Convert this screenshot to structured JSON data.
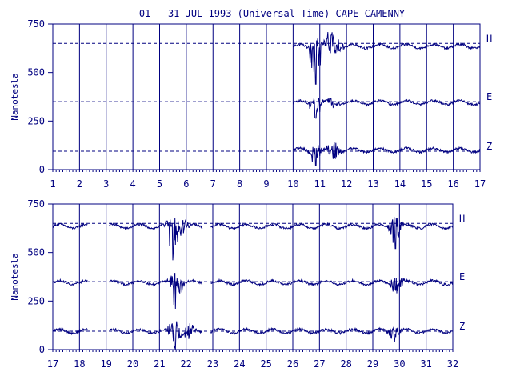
{
  "title": "01 - 31 JUL 1993 (Universal Time) CAPE CAMENNY",
  "colors": {
    "ink": "#000080",
    "background": "#ffffff"
  },
  "chart_data": [
    {
      "type": "line",
      "panel": "top",
      "ylabel": "Nanotesla",
      "xlabel": "",
      "xlim": [
        1,
        17
      ],
      "ylim": [
        0,
        750
      ],
      "y_ticks": [
        0,
        250,
        500,
        750
      ],
      "x_ticks": [
        1,
        2,
        3,
        4,
        5,
        6,
        7,
        8,
        9,
        10,
        11,
        12,
        13,
        14,
        15,
        16,
        17
      ],
      "grid": "vertical lines at each day",
      "data_start_day": 10,
      "series": [
        {
          "name": "H",
          "baseline": 650,
          "mean": 635,
          "amplitude": 10,
          "events": [
            {
              "day": 10.85,
              "min": 440,
              "max": 700
            },
            {
              "day": 11.4,
              "min": 600,
              "max": 720
            },
            {
              "day": 11.6,
              "min": 600,
              "max": 725
            }
          ]
        },
        {
          "name": "E",
          "baseline": 350,
          "mean": 345,
          "amplitude": 10,
          "events": [
            {
              "day": 10.85,
              "min": 265,
              "max": 380
            },
            {
              "day": 11.5,
              "min": 320,
              "max": 375
            }
          ]
        },
        {
          "name": "Z",
          "baseline": 95,
          "mean": 100,
          "amplitude": 10,
          "events": [
            {
              "day": 10.85,
              "min": 20,
              "max": 140
            },
            {
              "day": 11.5,
              "min": 55,
              "max": 160
            }
          ]
        }
      ]
    },
    {
      "type": "line",
      "panel": "bottom",
      "ylabel": "Nanotesla",
      "xlabel": "",
      "xlim": [
        17,
        32
      ],
      "ylim": [
        0,
        750
      ],
      "y_ticks": [
        0,
        250,
        500,
        750
      ],
      "x_ticks": [
        17,
        18,
        19,
        20,
        21,
        22,
        23,
        24,
        25,
        26,
        27,
        28,
        29,
        30,
        31,
        32
      ],
      "grid": "vertical lines at each day",
      "data_gaps": [
        [
          18.3,
          19.1
        ],
        [
          22.6,
          22.9
        ]
      ],
      "series": [
        {
          "name": "H",
          "baseline": 650,
          "mean": 635,
          "amplitude": 10,
          "events": [
            {
              "day": 21.5,
              "min": 460,
              "max": 700
            },
            {
              "day": 21.9,
              "min": 600,
              "max": 690
            },
            {
              "day": 29.85,
              "min": 520,
              "max": 715
            }
          ]
        },
        {
          "name": "E",
          "baseline": 350,
          "mean": 345,
          "amplitude": 10,
          "events": [
            {
              "day": 21.6,
              "min": 210,
              "max": 410
            },
            {
              "day": 29.9,
              "min": 290,
              "max": 400
            }
          ]
        },
        {
          "name": "Z",
          "baseline": 95,
          "mean": 95,
          "amplitude": 10,
          "events": [
            {
              "day": 21.6,
              "min": 0,
              "max": 185
            },
            {
              "day": 22.1,
              "min": 55,
              "max": 140
            },
            {
              "day": 29.8,
              "min": 45,
              "max": 140
            }
          ]
        }
      ]
    }
  ]
}
